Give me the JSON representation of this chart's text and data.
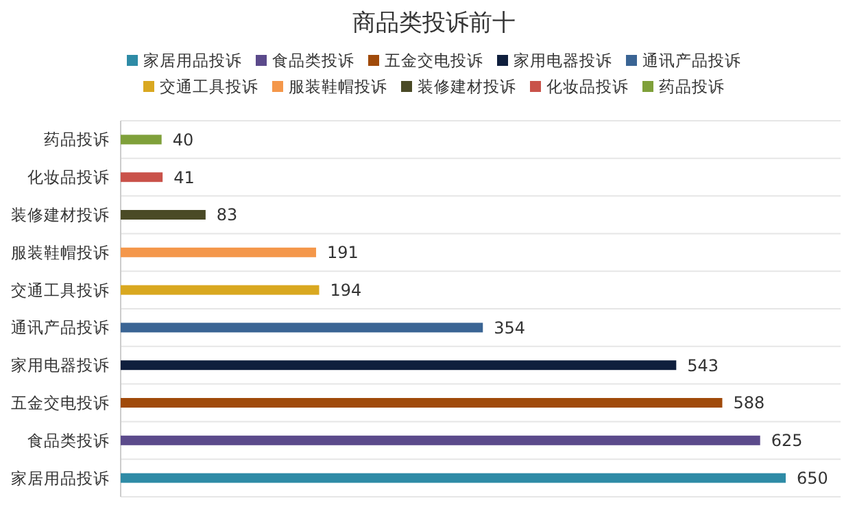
{
  "chart_data": {
    "type": "bar",
    "orientation": "horizontal",
    "title": "商品类投诉前十",
    "categories": [
      "药品投诉",
      "化妆品投诉",
      "装修建材投诉",
      "服装鞋帽投诉",
      "交通工具投诉",
      "通讯产品投诉",
      "家用电器投诉",
      "五金交电投诉",
      "食品类投诉",
      "家居用品投诉"
    ],
    "series": [
      {
        "name": "家居用品投诉",
        "color": "#2e8ba6",
        "values": [
          null,
          null,
          null,
          null,
          null,
          null,
          null,
          null,
          null,
          650
        ]
      },
      {
        "name": "食品类投诉",
        "color": "#5b4a8b",
        "values": [
          null,
          null,
          null,
          null,
          null,
          null,
          null,
          null,
          625,
          null
        ]
      },
      {
        "name": "五金交电投诉",
        "color": "#a04a0a",
        "values": [
          null,
          null,
          null,
          null,
          null,
          null,
          null,
          588,
          null,
          null
        ]
      },
      {
        "name": "家用电器投诉",
        "color": "#0f1f3d",
        "values": [
          null,
          null,
          null,
          null,
          null,
          null,
          543,
          null,
          null,
          null
        ]
      },
      {
        "name": "通讯产品投诉",
        "color": "#3a6494",
        "values": [
          null,
          null,
          null,
          null,
          null,
          354,
          null,
          null,
          null,
          null
        ]
      },
      {
        "name": "交通工具投诉",
        "color": "#d9a820",
        "values": [
          null,
          null,
          null,
          null,
          194,
          null,
          null,
          null,
          null,
          null
        ]
      },
      {
        "name": "服装鞋帽投诉",
        "color": "#f4974a",
        "values": [
          null,
          null,
          null,
          191,
          null,
          null,
          null,
          null,
          null,
          null
        ]
      },
      {
        "name": "装修建材投诉",
        "color": "#4a4a26",
        "values": [
          null,
          null,
          83,
          null,
          null,
          null,
          null,
          null,
          null,
          null
        ]
      },
      {
        "name": "化妆品投诉",
        "color": "#c9524a",
        "values": [
          null,
          41,
          null,
          null,
          null,
          null,
          null,
          null,
          null,
          null
        ]
      },
      {
        "name": "药品投诉",
        "color": "#7fa03a",
        "values": [
          40,
          null,
          null,
          null,
          null,
          null,
          null,
          null,
          null,
          null
        ]
      }
    ],
    "data_labels": true,
    "grid": "y",
    "legend": "top"
  }
}
